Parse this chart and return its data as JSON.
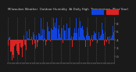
{
  "title": "Milwaukee Weather Outdoor Humidity At Daily High Temperature (Past Year)",
  "background_color": "#1a1a1a",
  "plot_bg_color": "#1a1a1a",
  "bar_color_above": "#1144dd",
  "bar_color_below": "#dd2222",
  "ylim": [
    -55,
    55
  ],
  "num_bars": 365,
  "seed": 42,
  "grid_color": "#555555",
  "title_fontsize": 3.5,
  "tick_fontsize": 3.0,
  "ytick_positions": [
    40,
    20,
    0,
    -20,
    -40
  ],
  "ytick_labels": [
    "8.",
    "6.",
    "4.",
    "2.",
    "0."
  ]
}
